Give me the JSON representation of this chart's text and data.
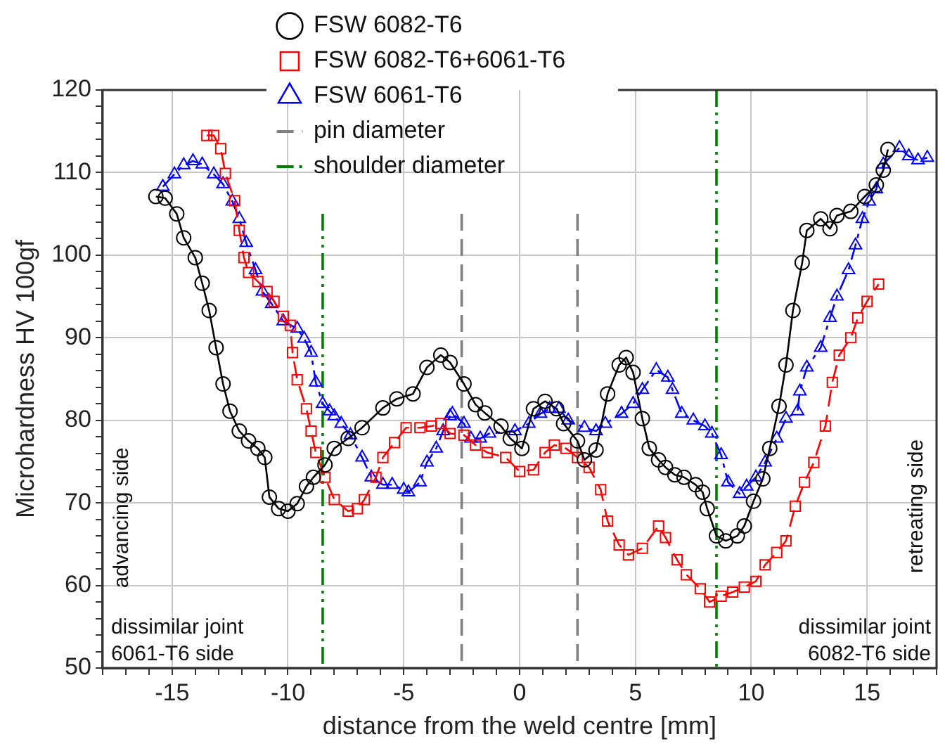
{
  "chart_data": {
    "type": "line",
    "xlabel": "distance from the weld centre [mm]",
    "ylabel": "Microhardness HV 100gf",
    "xlim": [
      -18,
      18
    ],
    "xticks": [
      {
        "value": -18,
        "label": null
      },
      {
        "value": -17,
        "label": null
      },
      {
        "value": -16,
        "label": null
      },
      -15,
      {
        "value": -14,
        "label": null
      },
      {
        "value": -13,
        "label": null
      },
      {
        "value": -12,
        "label": null
      },
      {
        "value": -11,
        "label": null
      },
      -10,
      {
        "value": -9,
        "label": null
      },
      {
        "value": -8,
        "label": null
      },
      {
        "value": -7,
        "label": null
      },
      {
        "value": -6,
        "label": null
      },
      -5,
      {
        "value": -4,
        "label": null
      },
      {
        "value": -3,
        "label": null
      },
      {
        "value": -2,
        "label": null
      },
      {
        "value": -1,
        "label": null
      },
      0,
      {
        "value": 1,
        "label": null
      },
      {
        "value": 2,
        "label": null
      },
      {
        "value": 3,
        "label": null
      },
      {
        "value": 4,
        "label": null
      },
      5,
      {
        "value": 6,
        "label": null
      },
      {
        "value": 7,
        "label": null
      },
      {
        "value": 8,
        "label": null
      },
      {
        "value": 9,
        "label": null
      },
      10,
      {
        "value": 11,
        "label": null
      },
      {
        "value": 12,
        "label": null
      },
      {
        "value": 13,
        "label": null
      },
      {
        "value": 14,
        "label": null
      },
      15,
      {
        "value": 16,
        "label": null
      },
      {
        "value": 17,
        "label": null
      },
      {
        "value": 18,
        "label": null
      }
    ],
    "ylim": [
      50,
      120
    ],
    "yticks": [
      50,
      {
        "value": 52,
        "label": null
      },
      {
        "value": 54,
        "label": null
      },
      {
        "value": 56,
        "label": null
      },
      {
        "value": 58,
        "label": null
      },
      60,
      {
        "value": 62,
        "label": null
      },
      {
        "value": 64,
        "label": null
      },
      {
        "value": 66,
        "label": null
      },
      {
        "value": 68,
        "label": null
      },
      70,
      {
        "value": 72,
        "label": null
      },
      {
        "value": 74,
        "label": null
      },
      {
        "value": 76,
        "label": null
      },
      {
        "value": 78,
        "label": null
      },
      80,
      {
        "value": 82,
        "label": null
      },
      {
        "value": 84,
        "label": null
      },
      {
        "value": 86,
        "label": null
      },
      {
        "value": 88,
        "label": null
      },
      90,
      {
        "value": 92,
        "label": null
      },
      {
        "value": 94,
        "label": null
      },
      {
        "value": 96,
        "label": null
      },
      {
        "value": 98,
        "label": null
      },
      100,
      {
        "value": 102,
        "label": null
      },
      {
        "value": 104,
        "label": null
      },
      {
        "value": 106,
        "label": null
      },
      {
        "value": 108,
        "label": null
      },
      110,
      {
        "value": 112,
        "label": null
      },
      {
        "value": 114,
        "label": null
      },
      {
        "value": 116,
        "label": null
      },
      {
        "value": 118,
        "label": null
      },
      120
    ],
    "grid": true,
    "legend": "top",
    "series": [
      {
        "name": "FSW 6082-T6",
        "color": "#000000",
        "marker": "circle",
        "line_style": "solid",
        "x": [
          -15.7,
          -15.3,
          -14.8,
          -14.5,
          -14.0,
          -13.7,
          -13.4,
          -13.1,
          -12.8,
          -12.5,
          -12.1,
          -11.7,
          -11.3,
          -11.0,
          -10.8,
          -10.4,
          -10.0,
          -9.6,
          -9.2,
          -8.9,
          -8.4,
          -8.0,
          -7.4,
          -6.8,
          -5.9,
          -5.3,
          -4.6,
          -4.0,
          -3.4,
          -3.0,
          -2.4,
          -1.9,
          -1.5,
          -0.8,
          -0.4,
          0.1,
          0.6,
          1.1,
          1.6,
          1.9,
          2.5,
          2.8,
          3.3,
          3.8,
          4.3,
          4.6,
          4.9,
          5.3,
          5.6,
          6.0,
          6.3,
          6.7,
          7.1,
          7.6,
          7.9,
          8.1,
          8.5,
          8.9,
          9.4,
          9.7,
          10.1,
          10.5,
          10.8,
          11.2,
          11.5,
          11.8,
          12.2,
          12.4,
          13.0,
          13.4,
          13.7,
          14.3,
          14.9,
          15.4,
          15.7,
          15.9
        ],
        "values": [
          107.1,
          106.9,
          105,
          102.1,
          99.7,
          96.6,
          93.3,
          88.8,
          84.4,
          81.1,
          78.7,
          77.5,
          76.6,
          75.5,
          70.7,
          69.3,
          69.0,
          69.9,
          72,
          73.1,
          74.6,
          76.6,
          77.8,
          79.1,
          81.5,
          82.6,
          83.2,
          86.4,
          87.9,
          87,
          84.4,
          81.9,
          80.9,
          79.3,
          77.8,
          76.6,
          81.4,
          82.3,
          81.4,
          79.6,
          77.5,
          75.2,
          76.4,
          83.2,
          86.7,
          87.6,
          85.8,
          80.2,
          76.6,
          75.2,
          74.3,
          73.4,
          73.1,
          72.2,
          71.3,
          69.3,
          66.0,
          65.4,
          66.0,
          67.2,
          70.2,
          72.9,
          76.6,
          81.7,
          86.7,
          93.3,
          99.1,
          103,
          104.4,
          103.2,
          104.8,
          105.3,
          107.1,
          108.5,
          110.3,
          112.8
        ]
      },
      {
        "name": "FSW 6082-T6+6061-T6",
        "color": "#ff0000",
        "marker": "square",
        "line_style": "dashed",
        "x": [
          -13.5,
          -13.2,
          -12.9,
          -12.7,
          -12.3,
          -12.1,
          -11.9,
          -11.7,
          -11.3,
          -10.9,
          -10.6,
          -10.2,
          -9.9,
          -9.8,
          -9.6,
          -9.2,
          -9.0,
          -8.8,
          -8.4,
          -8.0,
          -7.4,
          -7.0,
          -6.7,
          -6.2,
          -5.9,
          -5.4,
          -4.9,
          -4.3,
          -3.8,
          -3.4,
          -3.0,
          -2.4,
          -1.9,
          -1.4,
          -0.6,
          0.0,
          0.6,
          1.1,
          1.5,
          2.0,
          2.5,
          3.0,
          3.5,
          3.8,
          4.3,
          4.7,
          5.3,
          6.0,
          6.3,
          6.8,
          7.2,
          7.8,
          8.2,
          8.7,
          9.2,
          9.7,
          10.2,
          10.6,
          11.1,
          11.5,
          11.9,
          12.3,
          12.7,
          13.2,
          13.5,
          13.8,
          14.3,
          14.6,
          15.0,
          15.5
        ],
        "values": [
          114.5,
          114.5,
          112.9,
          109.9,
          106.6,
          103,
          99.7,
          97.9,
          96.8,
          95.6,
          94.4,
          92.6,
          91.5,
          88.2,
          84.9,
          81.4,
          78.7,
          76.1,
          73.1,
          70.4,
          69,
          69.3,
          70.4,
          73.1,
          75.5,
          77.3,
          79.1,
          79.1,
          79.3,
          79.6,
          78.4,
          78.2,
          77,
          76.1,
          75.5,
          73.8,
          74,
          76.1,
          77,
          76.6,
          75.5,
          74.3,
          71.6,
          67.8,
          64.9,
          63.7,
          64.5,
          67.2,
          65.8,
          63.1,
          61.3,
          59.6,
          58.0,
          58.7,
          59.2,
          59.8,
          60.5,
          62.5,
          64,
          65.4,
          69.6,
          72.5,
          74.9,
          79.3,
          84.6,
          87.9,
          90,
          92.4,
          94.4,
          96.5
        ]
      },
      {
        "name": "FSW 6061-T6",
        "color": "#0000ff",
        "marker": "triangle",
        "line_style": "dashdot",
        "x": [
          -15.4,
          -14.9,
          -14.5,
          -14.1,
          -13.7,
          -13.2,
          -12.8,
          -12.4,
          -12.1,
          -11.8,
          -11.4,
          -11.1,
          -10.7,
          -10.2,
          -9.6,
          -9.3,
          -9.0,
          -8.8,
          -8.5,
          -8.2,
          -8.0,
          -7.7,
          -7.3,
          -6.8,
          -6.4,
          -5.9,
          -5.5,
          -5.0,
          -4.8,
          -4.3,
          -4.0,
          -3.6,
          -3.3,
          -3.0,
          -2.9,
          -2.4,
          -2.1,
          -1.7,
          -1.3,
          -0.2,
          0.4,
          0.9,
          1.3,
          1.7,
          2.1,
          2.8,
          3.3,
          3.7,
          4.4,
          4.9,
          5.3,
          5.9,
          6.4,
          6.6,
          7.0,
          7.5,
          8.0,
          8.3,
          8.7,
          9.0,
          9.5,
          9.8,
          10.2,
          10.6,
          11.1,
          11.5,
          12.0,
          12.1,
          12.4,
          13.0,
          13.4,
          13.7,
          14.2,
          14.5,
          14.8,
          15.1,
          15.4,
          15.7,
          16.4,
          16.8,
          17.2,
          17.6
        ],
        "values": [
          108.3,
          109.8,
          110.9,
          111.4,
          111,
          109.8,
          108.6,
          106.5,
          104.4,
          101.5,
          98.2,
          95.6,
          94.1,
          92.0,
          91.1,
          89.9,
          88.2,
          84.6,
          82.0,
          81.1,
          80.5,
          79.6,
          78.2,
          75.5,
          73.1,
          72.2,
          72.2,
          71.6,
          71.3,
          72.5,
          74.9,
          76.6,
          78.7,
          80.5,
          80.8,
          79.6,
          77.8,
          77.8,
          78.4,
          78.7,
          79.6,
          80.8,
          81.4,
          81.4,
          80,
          79.1,
          78.7,
          79.6,
          80.8,
          82,
          83.7,
          86.1,
          85.2,
          83.7,
          80.8,
          80.0,
          79.3,
          78.4,
          75.8,
          72.5,
          71.1,
          72,
          73.1,
          74.9,
          77.8,
          80.2,
          81.1,
          83.5,
          86.4,
          88.8,
          92.4,
          95,
          98.2,
          101.2,
          104.4,
          106.5,
          108,
          111,
          113,
          112,
          111.5,
          111.8
        ]
      }
    ],
    "ref_lines": [
      {
        "axis": "x",
        "value": -2.5,
        "label": "pin diameter",
        "color": "#808080",
        "line_style": "dashed"
      },
      {
        "axis": "x",
        "value": 2.5,
        "color": "#808080",
        "line_style": "dashed"
      },
      {
        "axis": "x",
        "value": -8.5,
        "label": "shoulder diameter",
        "color": "#008000",
        "line_style": "dashdotdot"
      },
      {
        "axis": "x",
        "value": 8.5,
        "color": "#008000",
        "line_style": "dashdotdot"
      }
    ],
    "annotations": [
      "advancing side",
      "retreating side",
      "dissimilar joint\n6061-T6 side",
      "dissimilar joint\n6082-T6 side"
    ]
  }
}
